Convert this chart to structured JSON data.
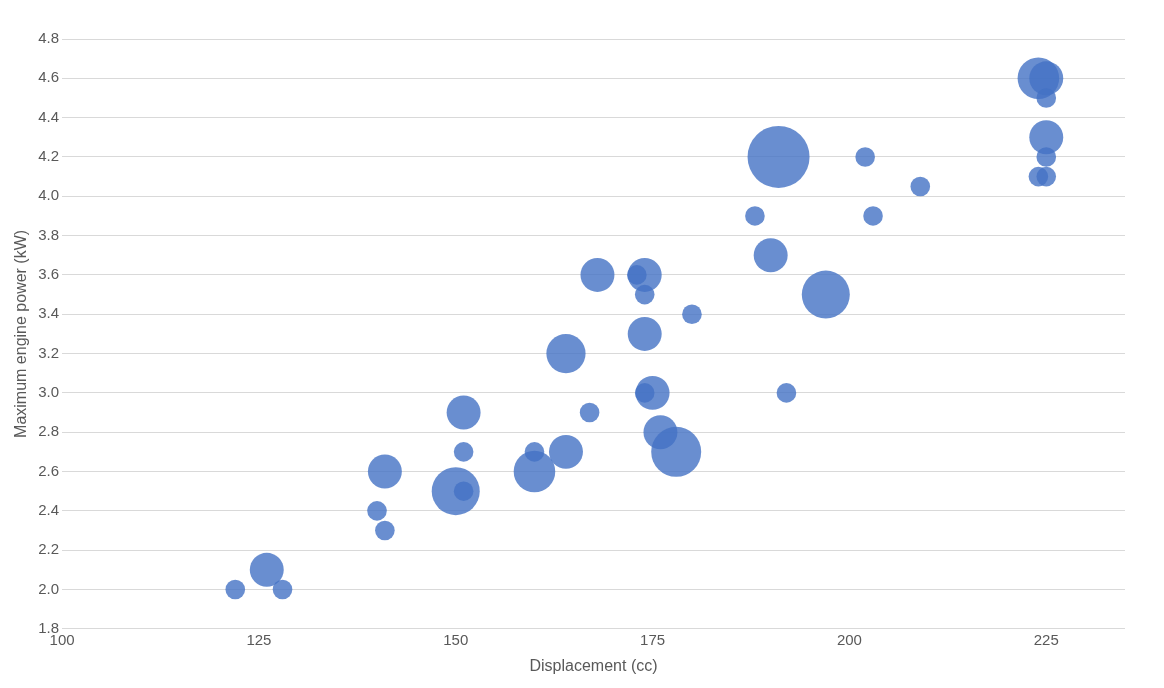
{
  "chart_data": {
    "type": "bubble",
    "xlabel": "Displacement (cc)",
    "ylabel": "Maximum engine power (kW)",
    "xlim": [
      100,
      235
    ],
    "xticks": [
      100,
      125,
      150,
      175,
      200,
      225
    ],
    "ylim": [
      1.8,
      4.8
    ],
    "yticks": [
      {
        "value": 1.8,
        "label": "1.8"
      },
      {
        "value": 2,
        "label": "2.0"
      },
      {
        "value": 2.2,
        "label": "2.2"
      },
      {
        "value": 2.4,
        "label": "2.4"
      },
      {
        "value": 2.6,
        "label": "2.6"
      },
      {
        "value": 2.8,
        "label": "2.8"
      },
      {
        "value": 3,
        "label": "3.0"
      },
      {
        "value": 3.2,
        "label": "3.2"
      },
      {
        "value": 3.4,
        "label": "3.4"
      },
      {
        "value": 3.6,
        "label": "3.6"
      },
      {
        "value": 3.8,
        "label": "3.8"
      },
      {
        "value": 4,
        "label": "4.0"
      },
      {
        "value": 4.2,
        "label": "4.2"
      },
      {
        "value": 4.4,
        "label": "4.4"
      },
      {
        "value": 4.6,
        "label": "4.6"
      },
      {
        "value": 4.8,
        "label": "4.8"
      }
    ],
    "grid": "y",
    "series": [
      {
        "color": "#4472c4",
        "x": [
          122,
          126,
          128,
          140,
          141,
          141,
          150,
          151,
          151,
          151,
          160,
          160,
          164,
          164,
          167,
          168,
          174,
          173,
          174,
          174,
          174,
          175,
          176,
          178,
          180,
          188,
          190,
          191,
          197,
          192,
          202,
          203,
          209,
          224,
          225,
          225,
          225,
          225,
          224,
          225
        ],
        "values": [
          2.0,
          2.1,
          2.0,
          2.4,
          2.3,
          2.6,
          2.5,
          2.5,
          2.7,
          2.9,
          2.6,
          2.7,
          2.7,
          3.2,
          2.9,
          3.6,
          3.6,
          3.6,
          3.5,
          3.3,
          3.0,
          3.0,
          2.8,
          2.7,
          3.4,
          3.9,
          3.7,
          4.2,
          3.5,
          3.0,
          4.2,
          3.9,
          4.05,
          4.6,
          4.6,
          4.5,
          4.3,
          4.2,
          4.1,
          4.1
        ],
        "sizes": [
          0.1,
          0.3,
          0.1,
          0.1,
          0.1,
          0.3,
          0.6,
          0.1,
          0.1,
          0.3,
          0.45,
          0.1,
          0.3,
          0.4,
          0.1,
          0.3,
          0.3,
          0.1,
          0.1,
          0.3,
          0.1,
          0.3,
          0.3,
          0.65,
          0.1,
          0.1,
          0.3,
          1,
          0.6,
          0.1,
          0.1,
          0.1,
          0.1,
          0.45,
          0.3,
          0.1,
          0.3,
          0.1,
          0.1,
          0.1
        ]
      }
    ]
  }
}
